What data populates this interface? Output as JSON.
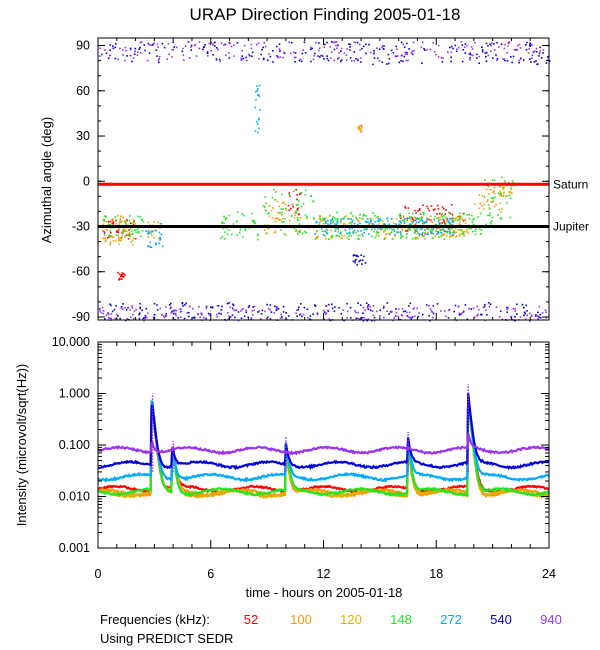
{
  "chart_data": [
    {
      "type": "scatter",
      "title": "URAP Direction Finding  2005-01-18",
      "ylabel": "Azimuthal angle (deg)",
      "xlim": [
        0,
        24
      ],
      "ylim": [
        -92,
        95
      ],
      "yticks": [
        90,
        60,
        30,
        0,
        -30,
        -60,
        -90
      ],
      "grid": false,
      "reference_lines": [
        {
          "name": "Saturn",
          "y": -2,
          "color": "#ff0000"
        },
        {
          "name": "Jupiter",
          "y": -30,
          "color": "#000000"
        }
      ],
      "series": [
        {
          "name": "52",
          "color": "#ff0000",
          "clusters": [
            {
              "x": [
                10.0,
                10.8
              ],
              "y": [
                -25,
                -5
              ]
            },
            {
              "x": [
                16.0,
                19.5
              ],
              "y": [
                -35,
                -15
              ]
            },
            {
              "x": [
                0.2,
                2.0
              ],
              "y": [
                -38,
                -25
              ]
            },
            {
              "x": [
                1.0,
                1.4
              ],
              "y": [
                -65,
                -60
              ]
            }
          ]
        },
        {
          "name": "100",
          "color": "#ff9900",
          "clusters": [
            {
              "x": [
                0.2,
                1.5
              ],
              "y": [
                -40,
                -22
              ]
            },
            {
              "x": [
                8.8,
                10.8
              ],
              "y": [
                -35,
                -12
              ]
            },
            {
              "x": [
                17.5,
                19.8
              ],
              "y": [
                -36,
                -22
              ]
            },
            {
              "x": [
                20.0,
                21.5
              ],
              "y": [
                -20,
                -3
              ]
            },
            {
              "x": [
                13.8,
                14.0
              ],
              "y": [
                33,
                38
              ]
            }
          ]
        },
        {
          "name": "120",
          "color": "#e0b000",
          "clusters": [
            {
              "x": [
                0.2,
                2.0
              ],
              "y": [
                -42,
                -22
              ]
            },
            {
              "x": [
                11.5,
                19.5
              ],
              "y": [
                -38,
                -22
              ]
            },
            {
              "x": [
                2.5,
                3.3
              ],
              "y": [
                -38,
                -25
              ]
            },
            {
              "x": [
                21.5,
                22.0
              ],
              "y": [
                -10,
                0
              ]
            }
          ]
        },
        {
          "name": "148",
          "color": "#22e622",
          "clusters": [
            {
              "x": [
                0.2,
                2.5
              ],
              "y": [
                -36,
                -22
              ]
            },
            {
              "x": [
                8.5,
                11.5
              ],
              "y": [
                -35,
                -5
              ]
            },
            {
              "x": [
                11.5,
                18.5
              ],
              "y": [
                -38,
                -20
              ]
            },
            {
              "x": [
                18.5,
                21.0
              ],
              "y": [
                -35,
                -20
              ]
            },
            {
              "x": [
                20.5,
                22.2
              ],
              "y": [
                -25,
                5
              ]
            },
            {
              "x": [
                6.5,
                8.5
              ],
              "y": [
                -40,
                -20
              ]
            }
          ]
        },
        {
          "name": "272",
          "color": "#00aaff",
          "clusters": [
            {
              "x": [
                2.5,
                3.5
              ],
              "y": [
                -45,
                -25
              ]
            },
            {
              "x": [
                11.5,
                19.0
              ],
              "y": [
                -35,
                -24
              ]
            },
            {
              "x": [
                8.3,
                8.6
              ],
              "y": [
                30,
                65
              ]
            }
          ]
        },
        {
          "name": "540",
          "color": "#0000dd",
          "clusters": [
            {
              "x": [
                0,
                24
              ],
              "y": [
                78,
                93
              ]
            },
            {
              "x": [
                0,
                24
              ],
              "y": [
                -92,
                -80
              ]
            },
            {
              "x": [
                13.5,
                14.2
              ],
              "y": [
                -55,
                -48
              ]
            }
          ]
        },
        {
          "name": "940",
          "color": "#9933ee",
          "clusters": [
            {
              "x": [
                0,
                24
              ],
              "y": [
                80,
                93
              ]
            },
            {
              "x": [
                0,
                24
              ],
              "y": [
                -92,
                -82
              ]
            }
          ]
        }
      ]
    },
    {
      "type": "line",
      "ylabel": "Intensity (microvolt/sqrt(Hz))",
      "xlabel": "time - hours on 2005-01-18",
      "xlim": [
        0,
        24
      ],
      "xticks": [
        0,
        6,
        12,
        18,
        24
      ],
      "yscale": "log",
      "ylim": [
        0.001,
        10
      ],
      "yticks": [
        "10.000",
        "1.000",
        "0.100",
        "0.010",
        "0.001"
      ],
      "yticks_values": [
        10,
        1,
        0.1,
        0.01,
        0.001
      ],
      "grid": false,
      "spikes": [
        {
          "x": 2.9,
          "peak": 1.0
        },
        {
          "x": 4.0,
          "peak": 0.12
        },
        {
          "x": 10.0,
          "peak": 0.15
        },
        {
          "x": 16.5,
          "peak": 0.18
        },
        {
          "x": 19.7,
          "peak": 1.5
        }
      ],
      "series": [
        {
          "name": "52",
          "color": "#ff0000",
          "baseline": 0.014
        },
        {
          "name": "100",
          "color": "#ff9900",
          "baseline": 0.012
        },
        {
          "name": "120",
          "color": "#e0b000",
          "baseline": 0.0115
        },
        {
          "name": "148",
          "color": "#22e622",
          "baseline": 0.0125
        },
        {
          "name": "272",
          "color": "#00aaff",
          "baseline": 0.024
        },
        {
          "name": "540",
          "color": "#0000dd",
          "baseline": 0.042
        },
        {
          "name": "940",
          "color": "#9933ee",
          "baseline": 0.08
        }
      ]
    }
  ],
  "footer": {
    "frequencies_label": "Frequencies (kHz):",
    "frequencies": [
      {
        "label": "52",
        "color": "#ff0000"
      },
      {
        "label": "100",
        "color": "#ff9900"
      },
      {
        "label": "120",
        "color": "#e0b000"
      },
      {
        "label": "148",
        "color": "#22e622"
      },
      {
        "label": "272",
        "color": "#00aaff"
      },
      {
        "label": "540",
        "color": "#0000dd"
      },
      {
        "label": "940",
        "color": "#9933ee"
      }
    ],
    "source_note": "Using PREDICT SEDR"
  }
}
